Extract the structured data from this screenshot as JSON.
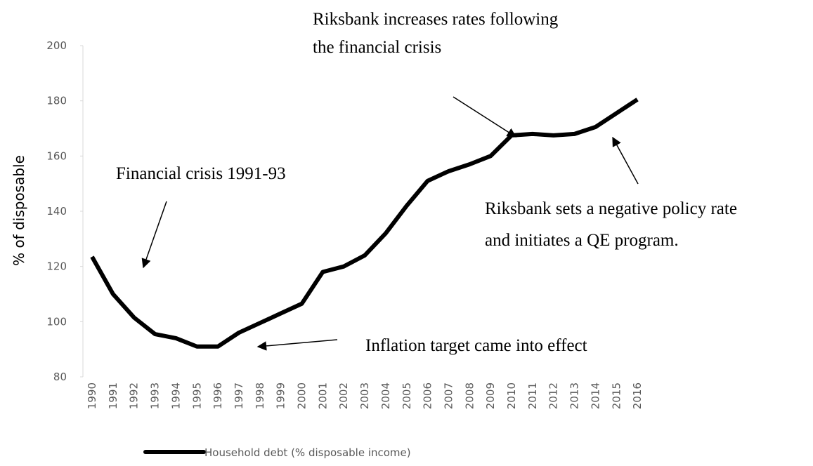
{
  "chart_data": {
    "type": "line",
    "y_label": "% of disposable",
    "categories": [
      "1990",
      "1991",
      "1992",
      "1993",
      "1994",
      "1995",
      "1996",
      "1997",
      "1998",
      "1999",
      "2000",
      "2001",
      "2002",
      "2003",
      "2004",
      "2005",
      "2006",
      "2007",
      "2008",
      "2009",
      "2010",
      "2011",
      "2012",
      "2013",
      "2014",
      "2015",
      "2016"
    ],
    "series": [
      {
        "name": "Household debt (% disposable income)",
        "color": "#000000",
        "values": [
          123.5,
          110,
          101.5,
          95.5,
          94,
          91,
          91,
          96,
          99.5,
          103,
          106.5,
          118,
          120,
          124,
          132,
          142,
          151,
          154.5,
          157,
          160,
          167.5,
          168,
          167.5,
          168,
          170.5,
          175.5,
          180.5
        ]
      }
    ],
    "ylim": [
      80,
      200
    ],
    "yticks": [
      80,
      100,
      120,
      140,
      160,
      180,
      200
    ],
    "annotations": [
      [
        "Financial crisis 1991-93"
      ],
      [
        "Inflation target came into effect"
      ],
      [
        "Riksbank increases rates following",
        "the financial crisis"
      ],
      [
        "Riksbank sets a negative policy rate",
        "and initiates a QE program."
      ]
    ]
  }
}
